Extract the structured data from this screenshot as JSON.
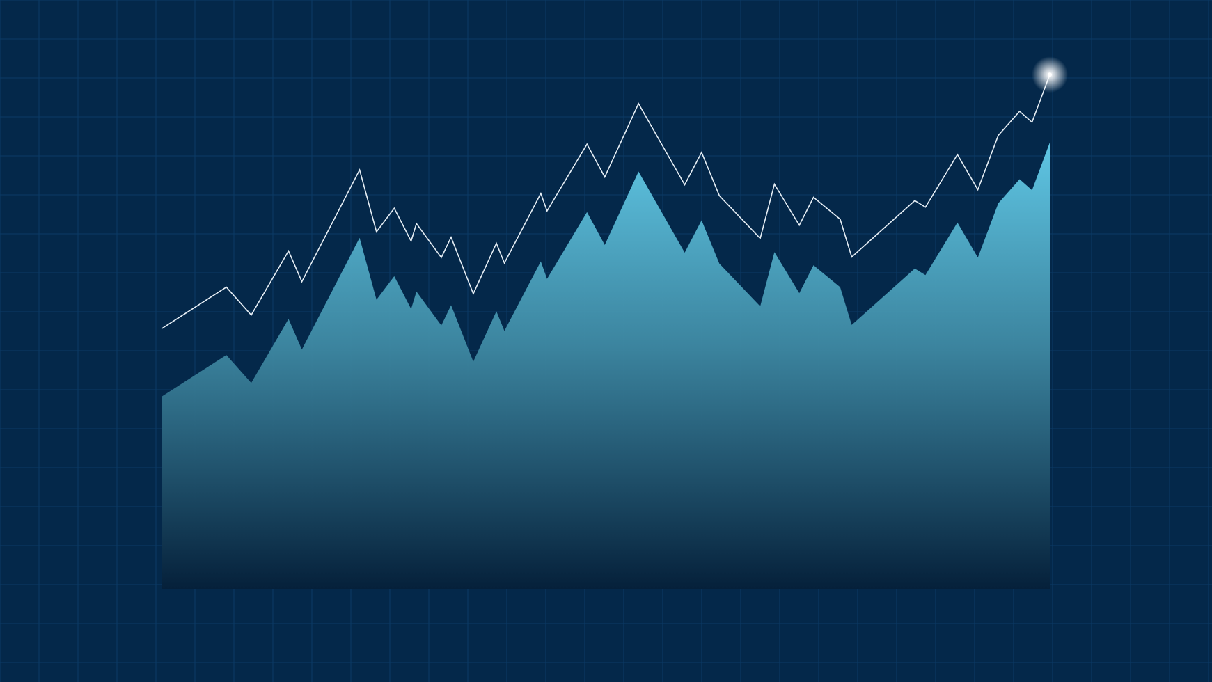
{
  "colors": {
    "background": "#04284a",
    "grid": "#0b3a66",
    "line": "#e6eef5",
    "area_top": "#5fc6e4",
    "area_bottom": "#05203a",
    "glow": "#ffffff"
  },
  "chart_data": {
    "type": "area",
    "grid": true,
    "legend": "none",
    "title": "",
    "xlabel": "",
    "ylabel": "",
    "xlim": [
      0,
      1
    ],
    "ylim": [
      0,
      1
    ],
    "series": [
      {
        "role": "upper-line",
        "x": [
          0.0,
          0.073,
          0.101,
          0.143,
          0.158,
          0.223,
          0.242,
          0.262,
          0.281,
          0.287,
          0.315,
          0.326,
          0.351,
          0.377,
          0.386,
          0.427,
          0.434,
          0.479,
          0.499,
          0.537,
          0.589,
          0.608,
          0.628,
          0.674,
          0.69,
          0.718,
          0.734,
          0.764,
          0.777,
          0.848,
          0.86,
          0.896,
          0.919,
          0.942,
          0.966,
          0.98,
          1.0
        ],
        "y": [
          0.476,
          0.552,
          0.501,
          0.618,
          0.562,
          0.766,
          0.653,
          0.696,
          0.636,
          0.668,
          0.606,
          0.643,
          0.54,
          0.632,
          0.596,
          0.723,
          0.691,
          0.813,
          0.753,
          0.887,
          0.739,
          0.798,
          0.719,
          0.641,
          0.74,
          0.665,
          0.716,
          0.676,
          0.607,
          0.71,
          0.698,
          0.794,
          0.73,
          0.829,
          0.873,
          0.853,
          0.94
        ]
      },
      {
        "role": "filled-area",
        "x": [
          0.0,
          0.073,
          0.101,
          0.143,
          0.158,
          0.223,
          0.242,
          0.262,
          0.281,
          0.287,
          0.315,
          0.326,
          0.351,
          0.377,
          0.386,
          0.427,
          0.434,
          0.479,
          0.499,
          0.537,
          0.589,
          0.608,
          0.628,
          0.674,
          0.69,
          0.718,
          0.734,
          0.764,
          0.777,
          0.848,
          0.86,
          0.896,
          0.919,
          0.942,
          0.966,
          0.98,
          1.0
        ],
        "y": [
          0.352,
          0.428,
          0.377,
          0.494,
          0.438,
          0.642,
          0.529,
          0.572,
          0.512,
          0.544,
          0.482,
          0.519,
          0.416,
          0.508,
          0.472,
          0.599,
          0.567,
          0.689,
          0.629,
          0.763,
          0.615,
          0.674,
          0.595,
          0.517,
          0.616,
          0.541,
          0.592,
          0.552,
          0.483,
          0.586,
          0.574,
          0.67,
          0.606,
          0.705,
          0.749,
          0.729,
          0.816
        ]
      }
    ]
  }
}
